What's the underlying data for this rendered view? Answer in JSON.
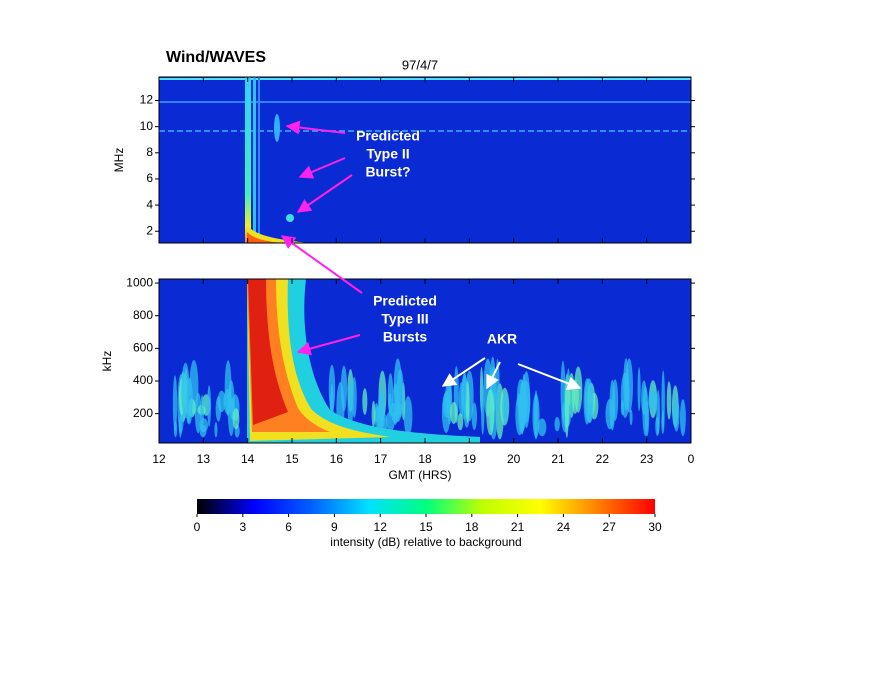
{
  "chart_data": [
    {
      "type": "heatmap",
      "title": "Wind/WAVES",
      "subtitle": "97/4/7",
      "ylabel": "MHz",
      "xlim": [
        12,
        24
      ],
      "xticks": [
        12,
        13,
        14,
        15,
        16,
        17,
        18,
        19,
        20,
        21,
        22,
        23,
        24
      ],
      "ylim": [
        1.1,
        13.8
      ],
      "yticks": [
        2,
        4,
        6,
        8,
        10,
        12
      ],
      "annotations": [
        {
          "lines": [
            "Predicted",
            "Type II",
            "Burst?"
          ]
        }
      ]
    },
    {
      "type": "heatmap",
      "ylabel": "kHz",
      "xlabel": "GMT (HRS)",
      "xlim": [
        12,
        24
      ],
      "xticks": [
        12,
        13,
        14,
        15,
        16,
        17,
        18,
        19,
        20,
        21,
        22,
        23,
        {
          "value": 24,
          "label": "0"
        }
      ],
      "ylim": [
        20,
        1025
      ],
      "yticks": [
        200,
        400,
        600,
        800,
        1000
      ],
      "annotations": [
        {
          "lines": [
            "Predicted",
            "Type III",
            "Bursts"
          ]
        },
        {
          "lines": [
            "AKR"
          ]
        }
      ]
    },
    {
      "type": "colorbar",
      "xlabel": "intensity (dB) relative to background",
      "xlim": [
        0,
        30
      ],
      "xticks": [
        0,
        3,
        6,
        9,
        12,
        15,
        18,
        21,
        24,
        27,
        30
      ],
      "colors": [
        "#000000",
        "#0000ff",
        "#0060ff",
        "#00e0ff",
        "#00ff80",
        "#c0ff00",
        "#ffff00",
        "#ff8000",
        "#ff0000"
      ]
    }
  ]
}
